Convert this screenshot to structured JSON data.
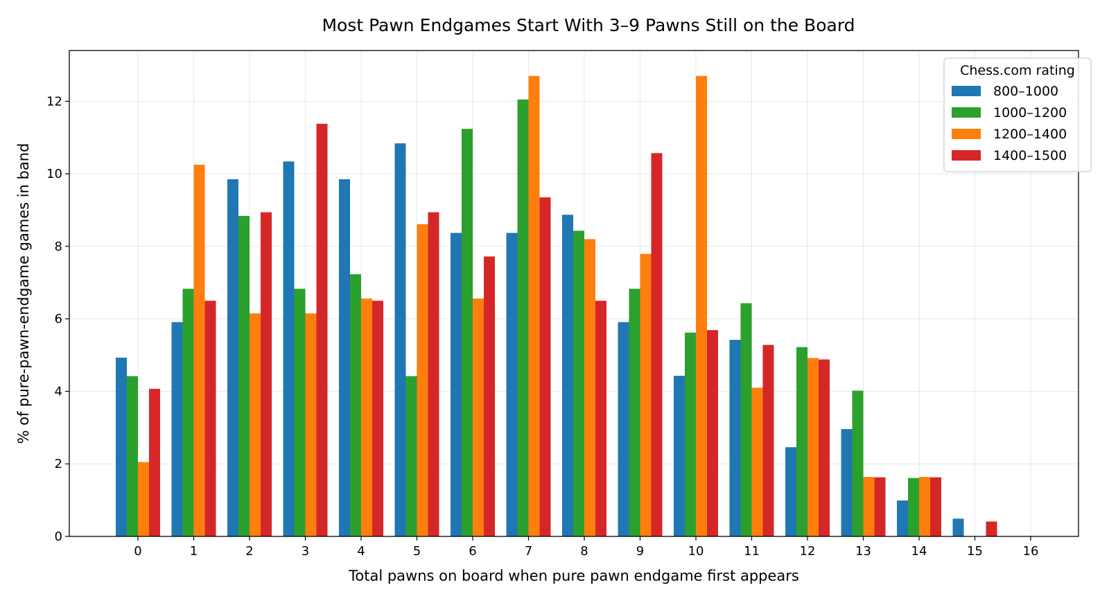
{
  "chart_data": {
    "type": "bar",
    "title": "Most Pawn Endgames Start With 3–9 Pawns Still on the Board",
    "xlabel": "Total pawns on board when pure pawn endgame first appears",
    "ylabel": "% of pure-pawn-endgame games in band",
    "categories": [
      "0",
      "1",
      "2",
      "3",
      "4",
      "5",
      "6",
      "7",
      "8",
      "9",
      "10",
      "11",
      "12",
      "13",
      "14",
      "15",
      "16"
    ],
    "ylim": [
      0,
      13.4
    ],
    "yticks": [
      "0",
      "2",
      "4",
      "6",
      "8",
      "10",
      "12"
    ],
    "grid": true,
    "legend": {
      "title": "Chess.com rating",
      "placement": "top-right"
    },
    "series": [
      {
        "name": "800–1000",
        "color": "#1f77b4",
        "values": [
          4.93,
          5.91,
          9.85,
          10.34,
          9.85,
          10.84,
          8.37,
          8.37,
          8.87,
          5.91,
          4.43,
          5.42,
          2.46,
          2.96,
          0.99,
          0.49,
          0
        ]
      },
      {
        "name": "1000–1200",
        "color": "#2ca02c",
        "values": [
          4.42,
          6.83,
          8.84,
          6.83,
          7.23,
          4.42,
          11.24,
          12.05,
          8.43,
          6.83,
          5.62,
          6.43,
          5.22,
          4.02,
          1.61,
          0,
          0
        ]
      },
      {
        "name": "1200–1400",
        "color": "#ff7f0e",
        "values": [
          2.05,
          10.25,
          6.15,
          6.15,
          6.56,
          8.61,
          6.56,
          12.7,
          8.2,
          7.79,
          12.7,
          4.1,
          4.92,
          1.64,
          1.64,
          0,
          0
        ]
      },
      {
        "name": "1400–1500",
        "color": "#d62728",
        "values": [
          4.07,
          6.5,
          8.94,
          11.38,
          6.5,
          8.94,
          7.72,
          9.35,
          6.5,
          10.57,
          5.69,
          5.28,
          4.88,
          1.63,
          1.63,
          0.41,
          0
        ]
      }
    ]
  }
}
